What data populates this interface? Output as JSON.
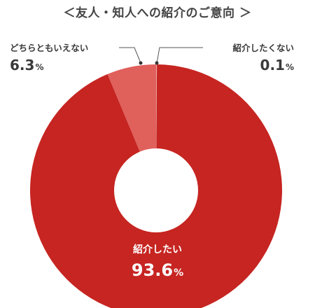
{
  "chart_data": {
    "type": "pie",
    "title": "＜友人・知人への紹介のご意向 ＞",
    "donut": true,
    "categories": [
      "紹介したい",
      "どちらともいえない",
      "紹介したくない"
    ],
    "values": [
      93.6,
      6.3,
      0.1
    ],
    "unit": "%",
    "colors": [
      "#c62521",
      "#e0605c",
      "#e9a9a7"
    ],
    "labels": [
      {
        "name": "紹介したい",
        "value": "93.6",
        "unit": "%"
      },
      {
        "name": "どちらともいえない",
        "value": "6.3",
        "unit": "%"
      },
      {
        "name": "紹介したくない",
        "value": "0.1",
        "unit": "%"
      }
    ]
  }
}
